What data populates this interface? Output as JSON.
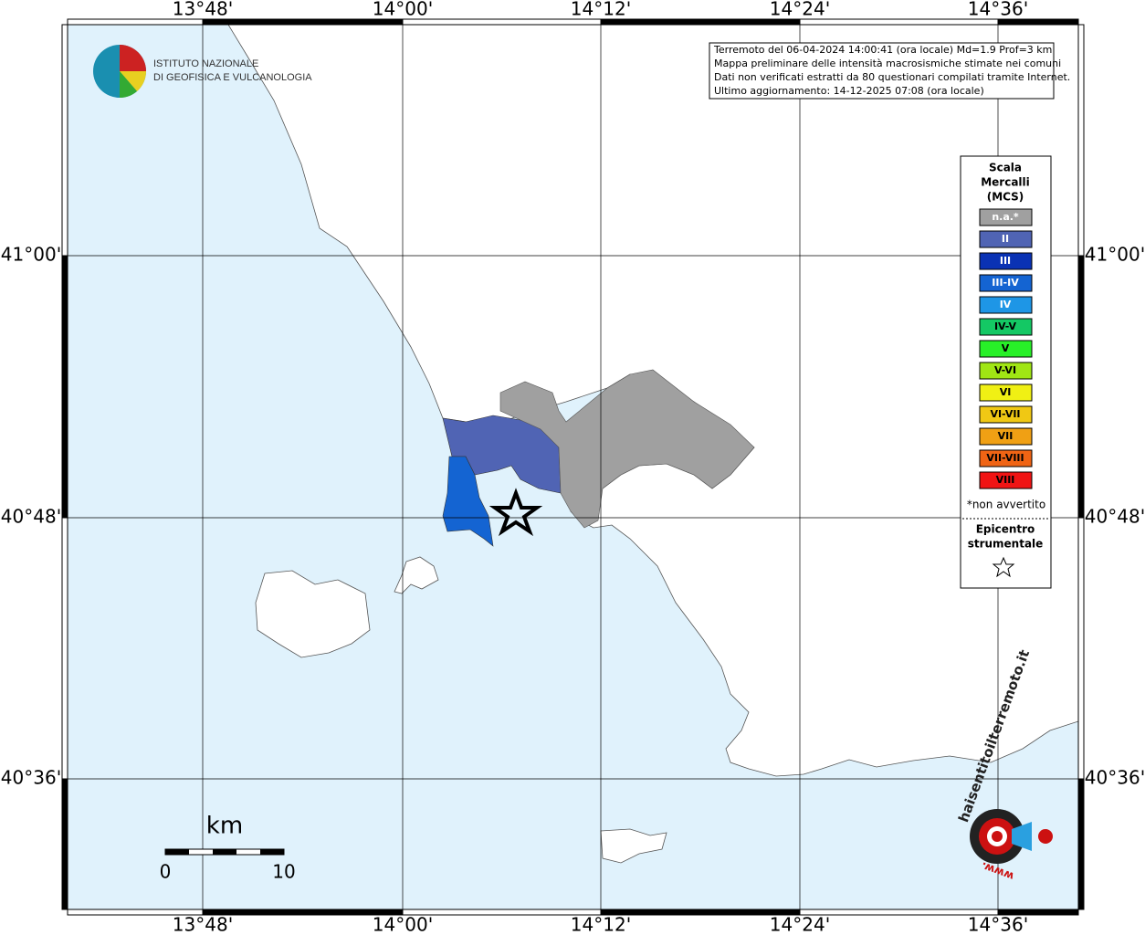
{
  "logo": {
    "line1": "ISTITUTO NAZIONALE",
    "line2": "DI GEOFISICA E VULCANOLOGIA"
  },
  "info": [
    "Terremoto del 06-04-2024 14:00:41 (ora locale) Md=1.9 Prof=3 km",
    "Mappa preliminare delle intensità macrosismiche stimate nei comuni",
    "Dati non verificati estratti da 80 questionari compilati tramite Internet.",
    "Ultimo aggiornamento: 14-12-2025 07:08 (ora locale)"
  ],
  "longitudes": [
    "13°48'",
    "14°00'",
    "14°12'",
    "14°24'",
    "14°36'"
  ],
  "latitudes": [
    "41°00'",
    "40°48'",
    "40°36'"
  ],
  "legend": {
    "title": [
      "Scala",
      "Mercalli",
      "(MCS)"
    ],
    "items": [
      {
        "label": "n.a.*",
        "color": "#a0a0a0"
      },
      {
        "label": "II",
        "color": "#5064b4"
      },
      {
        "label": "III",
        "color": "#0a32b4"
      },
      {
        "label": "III-IV",
        "color": "#1464d2"
      },
      {
        "label": "IV",
        "color": "#1e96e6"
      },
      {
        "label": "IV-V",
        "color": "#14c864"
      },
      {
        "label": "V",
        "color": "#28f028"
      },
      {
        "label": "V-VI",
        "color": "#a0e614"
      },
      {
        "label": "VI",
        "color": "#f0f014"
      },
      {
        "label": "VI-VII",
        "color": "#f0c814"
      },
      {
        "label": "VII",
        "color": "#f0a014"
      },
      {
        "label": "VII-VIII",
        "color": "#f06414"
      },
      {
        "label": "VIII",
        "color": "#f01414"
      }
    ],
    "note": "*non avvertito",
    "epicenter": [
      "Epicentro",
      "strumentale"
    ]
  },
  "scale": {
    "unit": "km",
    "labels": [
      "0",
      "10"
    ]
  },
  "site_logo": {
    "text": "haisentitoilterremoto.it",
    "www": "www."
  }
}
